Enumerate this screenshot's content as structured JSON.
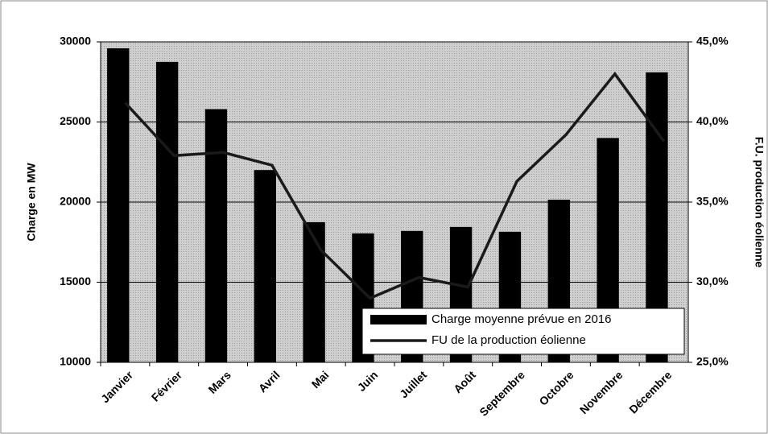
{
  "chart_data": {
    "type": "bar",
    "categories": [
      "Janvier",
      "Février",
      "Mars",
      "Avril",
      "Mai",
      "Juin",
      "Juillet",
      "Août",
      "Septembre",
      "Octobre",
      "Novembre",
      "Décembre"
    ],
    "series": [
      {
        "name": "Charge moyenne prévue en 2016",
        "type": "bar",
        "color": "#000000",
        "values": [
          29600,
          28750,
          25800,
          22000,
          18750,
          18050,
          18200,
          18450,
          18150,
          20150,
          24000,
          28100
        ]
      },
      {
        "name": "FU de la production éolienne",
        "type": "line",
        "axis": "y2",
        "color": "#1a1a1a",
        "values": [
          41.2,
          37.9,
          38.1,
          37.3,
          32.0,
          29.0,
          30.3,
          29.7,
          36.3,
          39.2,
          43.0,
          38.8
        ]
      }
    ],
    "y_label": "Charge en MW",
    "y2_label": "F.U. production éolienne",
    "ylim": [
      10000,
      30000
    ],
    "yticks": [
      10000,
      15000,
      20000,
      25000,
      30000
    ],
    "y2lim": [
      25,
      45
    ],
    "y2ticks": [
      {
        "value": 25,
        "label": "25,0%"
      },
      {
        "value": 30,
        "label": "30,0%"
      },
      {
        "value": 35,
        "label": "35,0%"
      },
      {
        "value": 40,
        "label": "40,0%"
      },
      {
        "value": 45,
        "label": "45,0%"
      }
    ],
    "grid": true,
    "legend": "lower right"
  }
}
